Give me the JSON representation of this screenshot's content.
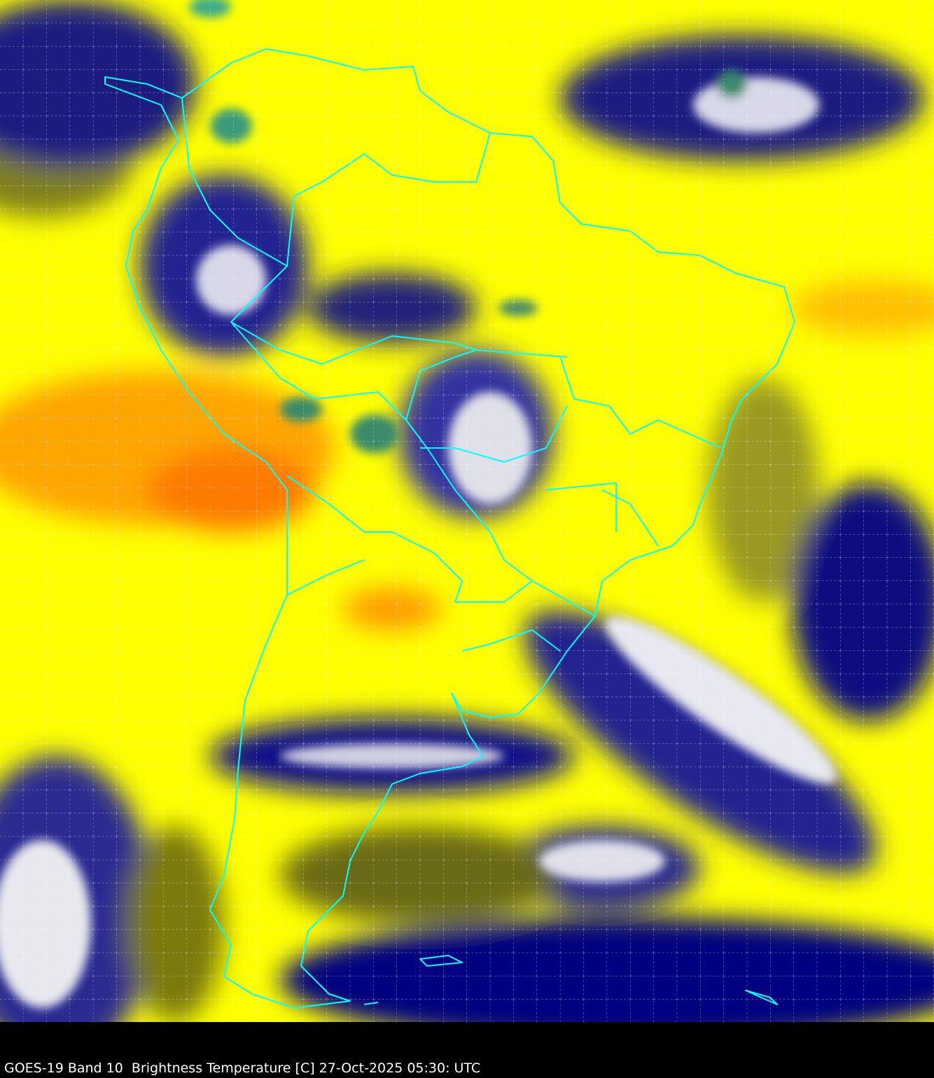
{
  "caption": "GOES-19 Band 10  Brightness Temperature [C] 27-Oct-2025 05:30: UTC",
  "colors": {
    "warm_dry": "#ffff00",
    "warmest": "#ff8c00",
    "moist": "#7a7a10",
    "cold": "#000080",
    "coldest_cloud": "#ffffff",
    "deep_convection": "#3a8a5a",
    "borders": "#00ffff",
    "grid": "#ffffff"
  }
}
